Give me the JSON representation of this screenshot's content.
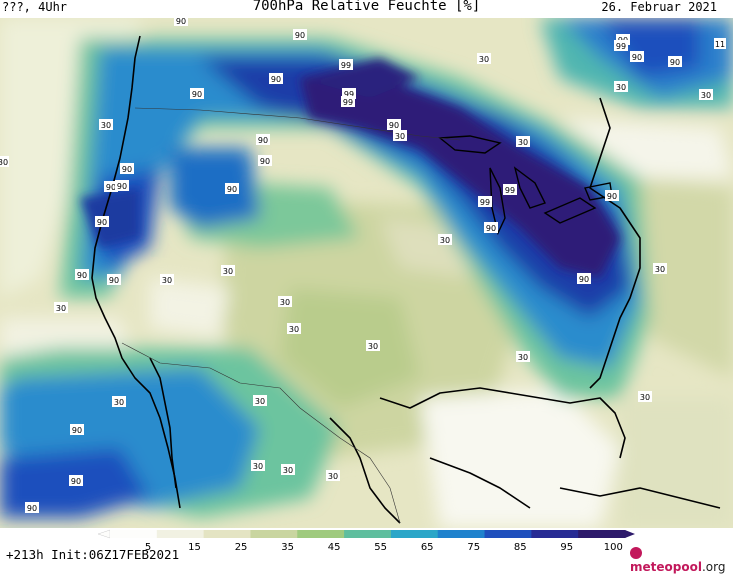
{
  "header": {
    "left": "???, 4Uhr",
    "title": "700hPa Relative Feuchte [%]",
    "date": "26. Februar 2021"
  },
  "footer": {
    "run": "+213h Init:06Z17FEB2021",
    "brand": "meteopool",
    "brand_suffix": ".org"
  },
  "legend": {
    "ticks": [
      "5",
      "15",
      "25",
      "35",
      "45",
      "55",
      "65",
      "75",
      "85",
      "95",
      "100"
    ],
    "colors": [
      "#fdfdfb",
      "#f1f1e2",
      "#e4e4c3",
      "#c9d5a0",
      "#9fca7e",
      "#5fbe9e",
      "#2ba6c8",
      "#1f82cd",
      "#1f4fbd",
      "#272b94",
      "#2d1a6b"
    ]
  },
  "map_labels": [
    "90",
    "90",
    "90",
    "99",
    "99",
    "90",
    "90",
    "90",
    "30",
    "90",
    "99",
    "90",
    "90",
    "30",
    "30",
    "90",
    "30",
    "90",
    "90",
    "90",
    "30",
    "30",
    "90",
    "90",
    "30",
    "99",
    "99",
    "90",
    "90",
    "30",
    "30",
    "30",
    "30",
    "30",
    "30",
    "30",
    "30",
    "90",
    "30",
    "90",
    "90",
    "30",
    "30",
    "30",
    "30",
    "30",
    "90",
    "90",
    "90",
    "99",
    "11",
    "30"
  ]
}
